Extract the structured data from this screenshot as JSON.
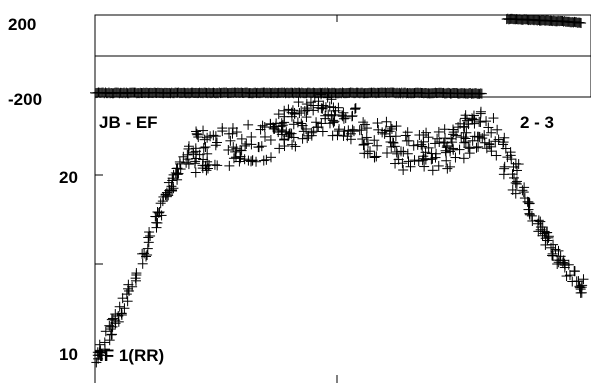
{
  "chart_data": [
    {
      "panel": "phase",
      "type": "scatter",
      "marker": "+",
      "y_tick_labels": [
        "200",
        "-200"
      ],
      "ylim": [
        -200,
        200
      ],
      "series": [
        {
          "x": [
            0.0,
            0.1,
            0.2,
            0.3,
            0.4,
            0.5,
            0.6,
            0.7,
            0.78
          ],
          "y": [
            -180,
            -180,
            -180,
            -180,
            -180,
            -180,
            -180,
            -181,
            -183
          ]
        },
        {
          "x": [
            0.83,
            0.86,
            0.89,
            0.92,
            0.95,
            0.98
          ],
          "y": [
            180,
            178,
            175,
            172,
            168,
            162
          ]
        }
      ]
    },
    {
      "panel": "amplitude",
      "type": "scatter",
      "marker": "+",
      "y_scale": "log",
      "y_tick_labels": [
        "20",
        "10"
      ],
      "ylim": [
        9.5,
        30
      ],
      "annotations": [
        "JB - EF",
        "2 - 3",
        "IF 1(RR)"
      ],
      "profile": {
        "x": [
          0.0,
          0.03,
          0.06,
          0.09,
          0.12,
          0.15,
          0.18,
          0.2,
          0.25,
          0.35,
          0.45,
          0.55,
          0.65,
          0.72,
          0.78,
          0.82,
          0.86,
          0.9,
          0.93,
          0.96,
          0.98
        ],
        "y": [
          9.8,
          10.8,
          12.2,
          14.0,
          16.3,
          19.0,
          21.3,
          22.0,
          22.5,
          23.2,
          25.5,
          23.5,
          21.8,
          22.5,
          24.5,
          22.0,
          18.8,
          16.0,
          14.6,
          13.5,
          13.0
        ]
      }
    }
  ]
}
